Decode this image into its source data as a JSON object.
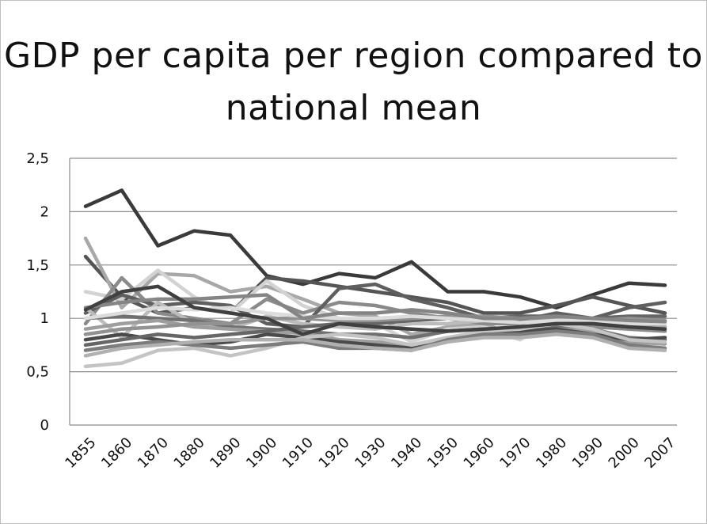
{
  "chart_data": {
    "type": "line",
    "title": "GDP per capita per region compared to national mean",
    "xlabel": "",
    "ylabel": "",
    "categories": [
      "1855",
      "1860",
      "1870",
      "1880",
      "1890",
      "1900",
      "1910",
      "1920",
      "1930",
      "1940",
      "1950",
      "1960",
      "1970",
      "1980",
      "1990",
      "2000",
      "2007"
    ],
    "ylim": [
      0,
      2.5
    ],
    "yticks": [
      "0",
      "0,5",
      "1",
      "1,5",
      "2",
      "2,5"
    ],
    "ytick_values": [
      0,
      0.5,
      1,
      1.5,
      2,
      2.5
    ],
    "grid": true,
    "legend": "none",
    "series": [
      {
        "color": "#3a3a3a",
        "values": [
          2.05,
          2.2,
          1.68,
          1.82,
          1.78,
          1.4,
          1.32,
          1.42,
          1.38,
          1.53,
          1.25,
          1.25,
          1.2,
          1.1,
          1.22,
          1.33,
          1.31
        ]
      },
      {
        "color": "#555555",
        "values": [
          1.58,
          1.2,
          1.05,
          1.1,
          1.05,
          1.38,
          1.35,
          1.3,
          1.25,
          1.2,
          1.15,
          1.05,
          1.05,
          1.12,
          1.2,
          1.12,
          1.05
        ]
      },
      {
        "color": "#a8a8a8",
        "values": [
          1.75,
          1.1,
          1.42,
          1.4,
          1.25,
          1.3,
          1.18,
          1.05,
          1.02,
          0.85,
          0.92,
          0.95,
          0.82,
          0.98,
          0.92,
          0.93,
          0.92
        ]
      },
      {
        "color": "#d2d2d2",
        "values": [
          1.25,
          1.18,
          1.45,
          1.2,
          1.05,
          1.35,
          1.12,
          1.0,
          0.95,
          0.78,
          0.9,
          0.92,
          0.8,
          1.02,
          0.95,
          0.9,
          0.88
        ]
      },
      {
        "color": "#8a8a8a",
        "values": [
          0.95,
          1.38,
          1.05,
          1.0,
          0.95,
          1.18,
          1.05,
          1.15,
          1.12,
          1.05,
          1.0,
          0.95,
          0.95,
          1.02,
          0.92,
          0.9,
          0.88
        ]
      },
      {
        "color": "#5f5f5f",
        "values": [
          1.05,
          1.22,
          1.12,
          1.15,
          1.12,
          0.95,
          0.92,
          1.28,
          1.32,
          1.18,
          1.1,
          1.0,
          0.98,
          1.05,
          1.0,
          1.1,
          1.15
        ]
      },
      {
        "color": "#bcbcbc",
        "values": [
          1.1,
          0.82,
          1.15,
          0.95,
          0.9,
          1.02,
          0.95,
          0.92,
          0.9,
          0.95,
          0.95,
          0.98,
          1.0,
          1.0,
          0.98,
          0.95,
          0.95
        ]
      },
      {
        "color": "#707070",
        "values": [
          1.0,
          1.02,
          1.0,
          0.98,
          0.92,
          0.9,
          0.88,
          0.85,
          0.85,
          0.82,
          0.88,
          0.9,
          0.88,
          0.92,
          0.9,
          0.82,
          0.8
        ]
      },
      {
        "color": "#9e9e9e",
        "values": [
          0.9,
          0.95,
          0.98,
          0.92,
          0.9,
          0.88,
          0.86,
          0.8,
          0.78,
          0.75,
          0.82,
          0.85,
          0.85,
          0.9,
          0.88,
          0.78,
          0.76
        ]
      },
      {
        "color": "#4a4a4a",
        "values": [
          0.8,
          0.85,
          0.8,
          0.75,
          0.78,
          0.85,
          0.82,
          0.78,
          0.75,
          0.72,
          0.8,
          0.85,
          0.88,
          0.9,
          0.85,
          0.8,
          0.82
        ]
      },
      {
        "color": "#c4c4c4",
        "values": [
          0.55,
          0.58,
          0.7,
          0.72,
          0.65,
          0.72,
          0.82,
          0.85,
          0.82,
          0.75,
          0.82,
          0.88,
          0.9,
          0.95,
          0.9,
          0.8,
          0.78
        ]
      },
      {
        "color": "#7c7c7c",
        "values": [
          0.7,
          0.75,
          0.78,
          0.75,
          0.72,
          0.75,
          0.78,
          0.72,
          0.72,
          0.7,
          0.8,
          0.85,
          0.85,
          0.88,
          0.85,
          0.75,
          0.72
        ]
      },
      {
        "color": "#b0b0b0",
        "values": [
          0.65,
          0.72,
          0.75,
          0.78,
          0.8,
          0.8,
          0.8,
          0.75,
          0.72,
          0.7,
          0.78,
          0.82,
          0.82,
          0.85,
          0.82,
          0.72,
          0.7
        ]
      },
      {
        "color": "#666666",
        "values": [
          0.75,
          0.8,
          0.85,
          0.82,
          0.85,
          0.88,
          0.92,
          0.95,
          0.95,
          0.98,
          1.0,
          1.0,
          1.02,
          1.02,
          1.0,
          1.02,
          1.02
        ]
      },
      {
        "color": "#929292",
        "values": [
          0.85,
          0.9,
          0.92,
          0.95,
          0.95,
          1.0,
          1.0,
          0.98,
          0.98,
          1.0,
          1.02,
          1.02,
          1.0,
          1.0,
          0.98,
          1.0,
          0.98
        ]
      },
      {
        "color": "#dcdcdc",
        "values": [
          1.0,
          1.05,
          1.1,
          1.08,
          1.1,
          1.05,
          1.02,
          1.0,
          1.0,
          1.02,
          1.0,
          0.98,
          0.96,
          0.98,
          0.98,
          0.95,
          0.95
        ]
      },
      {
        "color": "#858585",
        "values": [
          1.1,
          1.15,
          1.18,
          1.18,
          1.2,
          1.22,
          1.0,
          1.05,
          1.05,
          1.08,
          1.05,
          1.0,
          1.0,
          1.02,
          1.0,
          0.98,
          0.97
        ]
      },
      {
        "color": "#404040",
        "values": [
          1.08,
          1.25,
          1.3,
          1.1,
          1.05,
          1.0,
          0.85,
          0.95,
          0.92,
          0.9,
          0.88,
          0.9,
          0.92,
          0.95,
          0.95,
          0.92,
          0.9
        ]
      }
    ]
  }
}
